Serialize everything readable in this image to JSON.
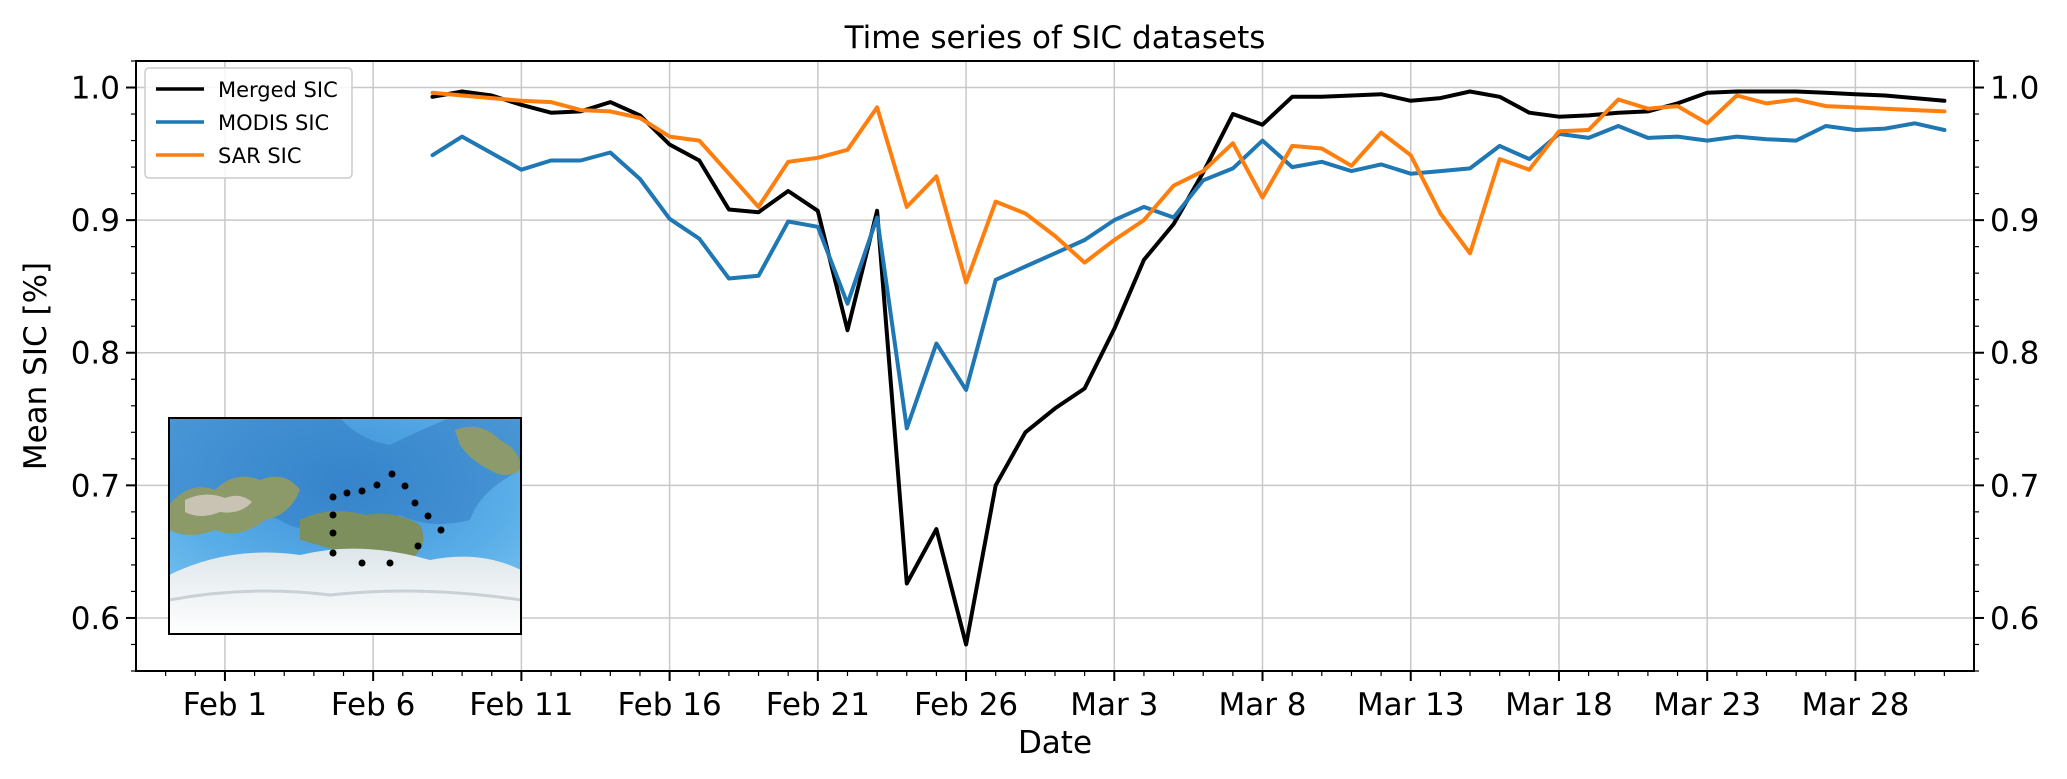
{
  "chart_data": {
    "type": "line",
    "title": "Time series of SIC datasets",
    "xlabel": "Date",
    "ylabel": "Mean SIC [%]",
    "grid": true,
    "legend_position": "top-left",
    "ylim": [
      0.56,
      1.02
    ],
    "xlim": [
      "2023-01-29",
      "2023-04-01"
    ],
    "y_ticks": [
      "0.6",
      "0.7",
      "0.8",
      "0.9",
      "1.0"
    ],
    "x_ticks": [
      {
        "date": "2023-02-01",
        "label": "Feb 1"
      },
      {
        "date": "2023-02-06",
        "label": "Feb 6"
      },
      {
        "date": "2023-02-11",
        "label": "Feb 11"
      },
      {
        "date": "2023-02-16",
        "label": "Feb 16"
      },
      {
        "date": "2023-02-21",
        "label": "Feb 21"
      },
      {
        "date": "2023-02-26",
        "label": "Feb 26"
      },
      {
        "date": "2023-03-03",
        "label": "Mar 3"
      },
      {
        "date": "2023-03-08",
        "label": "Mar 8"
      },
      {
        "date": "2023-03-13",
        "label": "Mar 13"
      },
      {
        "date": "2023-03-18",
        "label": "Mar 18"
      },
      {
        "date": "2023-03-23",
        "label": "Mar 23"
      },
      {
        "date": "2023-03-28",
        "label": "Mar 28"
      }
    ],
    "series": [
      {
        "name": "Merged SIC",
        "color": "#000000",
        "x": [
          "2023-02-08",
          "2023-02-09",
          "2023-02-10",
          "2023-02-11",
          "2023-02-12",
          "2023-02-13",
          "2023-02-14",
          "2023-02-15",
          "2023-02-16",
          "2023-02-17",
          "2023-02-18",
          "2023-02-19",
          "2023-02-20",
          "2023-02-21",
          "2023-02-22",
          "2023-02-23",
          "2023-02-24",
          "2023-02-25",
          "2023-02-26",
          "2023-02-27",
          "2023-02-28",
          "2023-03-01",
          "2023-03-02",
          "2023-03-03",
          "2023-03-04",
          "2023-03-05",
          "2023-03-06",
          "2023-03-07",
          "2023-03-08",
          "2023-03-09",
          "2023-03-10",
          "2023-03-11",
          "2023-03-12",
          "2023-03-13",
          "2023-03-14",
          "2023-03-15",
          "2023-03-16",
          "2023-03-17",
          "2023-03-18",
          "2023-03-19",
          "2023-03-20",
          "2023-03-21",
          "2023-03-22",
          "2023-03-23",
          "2023-03-24",
          "2023-03-25",
          "2023-03-26",
          "2023-03-27",
          "2023-03-28",
          "2023-03-29",
          "2023-03-30",
          "2023-03-31"
        ],
        "values": [
          0.993,
          0.997,
          0.994,
          0.987,
          0.981,
          0.982,
          0.989,
          0.979,
          0.957,
          0.945,
          0.908,
          0.906,
          0.922,
          0.907,
          0.817,
          0.907,
          0.626,
          0.667,
          0.58,
          0.7,
          0.74,
          0.758,
          0.773,
          0.818,
          0.87,
          0.897,
          0.936,
          0.98,
          0.972,
          0.993,
          0.993,
          0.994,
          0.995,
          0.99,
          0.992,
          0.997,
          0.993,
          0.981,
          0.978,
          0.979,
          0.981,
          0.982,
          0.988,
          0.996,
          0.997,
          0.997,
          0.997,
          0.996,
          0.995,
          0.994,
          0.992,
          0.99
        ]
      },
      {
        "name": "MODIS SIC",
        "color": "#1f77b4",
        "x": [
          "2023-02-08",
          "2023-02-09",
          "2023-02-11",
          "2023-02-12",
          "2023-02-13",
          "2023-02-14",
          "2023-02-15",
          "2023-02-16",
          "2023-02-17",
          "2023-02-18",
          "2023-02-19",
          "2023-02-20",
          "2023-02-21",
          "2023-02-22",
          "2023-02-23",
          "2023-02-24",
          "2023-02-25",
          "2023-02-26",
          "2023-02-27",
          "2023-02-28",
          "2023-03-01",
          "2023-03-02",
          "2023-03-03",
          "2023-03-04",
          "2023-03-05",
          "2023-03-06",
          "2023-03-07",
          "2023-03-08",
          "2023-03-09",
          "2023-03-10",
          "2023-03-11",
          "2023-03-12",
          "2023-03-13",
          "2023-03-14",
          "2023-03-15",
          "2023-03-16",
          "2023-03-17",
          "2023-03-18",
          "2023-03-19",
          "2023-03-20",
          "2023-03-21",
          "2023-03-22",
          "2023-03-23",
          "2023-03-24",
          "2023-03-25",
          "2023-03-26",
          "2023-03-27",
          "2023-03-28",
          "2023-03-29",
          "2023-03-30",
          "2023-03-31"
        ],
        "values": [
          0.949,
          0.963,
          0.938,
          0.945,
          0.945,
          0.951,
          0.931,
          0.901,
          0.886,
          0.856,
          0.858,
          0.899,
          0.895,
          0.837,
          0.902,
          0.743,
          0.807,
          0.772,
          0.855,
          0.865,
          0.875,
          0.885,
          0.9,
          0.91,
          0.902,
          0.93,
          0.939,
          0.96,
          0.94,
          0.944,
          0.937,
          0.942,
          0.935,
          0.937,
          0.939,
          0.956,
          0.946,
          0.965,
          0.962,
          0.971,
          0.962,
          0.963,
          0.96,
          0.963,
          0.961,
          0.96,
          0.971,
          0.968,
          0.969,
          0.973,
          0.968
        ]
      },
      {
        "name": "SAR SIC",
        "color": "#ff7f0e",
        "x": [
          "2023-02-08",
          "2023-02-09",
          "2023-02-10",
          "2023-02-11",
          "2023-02-12",
          "2023-02-13",
          "2023-02-14",
          "2023-02-15",
          "2023-02-16",
          "2023-02-17",
          "2023-02-18",
          "2023-02-19",
          "2023-02-20",
          "2023-02-21",
          "2023-02-22",
          "2023-02-23",
          "2023-02-24",
          "2023-02-25",
          "2023-02-26",
          "2023-02-27",
          "2023-02-28",
          "2023-03-01",
          "2023-03-02",
          "2023-03-03",
          "2023-03-04",
          "2023-03-05",
          "2023-03-06",
          "2023-03-07",
          "2023-03-08",
          "2023-03-09",
          "2023-03-10",
          "2023-03-11",
          "2023-03-12",
          "2023-03-13",
          "2023-03-14",
          "2023-03-15",
          "2023-03-16",
          "2023-03-17",
          "2023-03-18",
          "2023-03-19",
          "2023-03-20",
          "2023-03-21",
          "2023-03-22",
          "2023-03-23",
          "2023-03-24",
          "2023-03-25",
          "2023-03-26",
          "2023-03-27",
          "2023-03-28",
          "2023-03-29",
          "2023-03-30",
          "2023-03-31"
        ],
        "values": [
          0.996,
          0.994,
          0.992,
          0.99,
          0.989,
          0.983,
          0.982,
          0.977,
          0.963,
          0.96,
          0.935,
          0.91,
          0.944,
          0.947,
          0.953,
          0.985,
          0.91,
          0.933,
          0.853,
          0.914,
          0.905,
          0.888,
          0.868,
          0.885,
          0.9,
          0.926,
          0.937,
          0.958,
          0.917,
          0.956,
          0.954,
          0.941,
          0.966,
          0.949,
          0.905,
          0.875,
          0.946,
          0.938,
          0.967,
          0.968,
          0.991,
          0.984,
          0.986,
          0.973,
          0.994,
          0.988,
          0.991,
          0.986,
          0.985,
          0.984,
          0.983,
          0.982
        ]
      }
    ]
  },
  "inset": {
    "description_icon": "map-icon"
  }
}
